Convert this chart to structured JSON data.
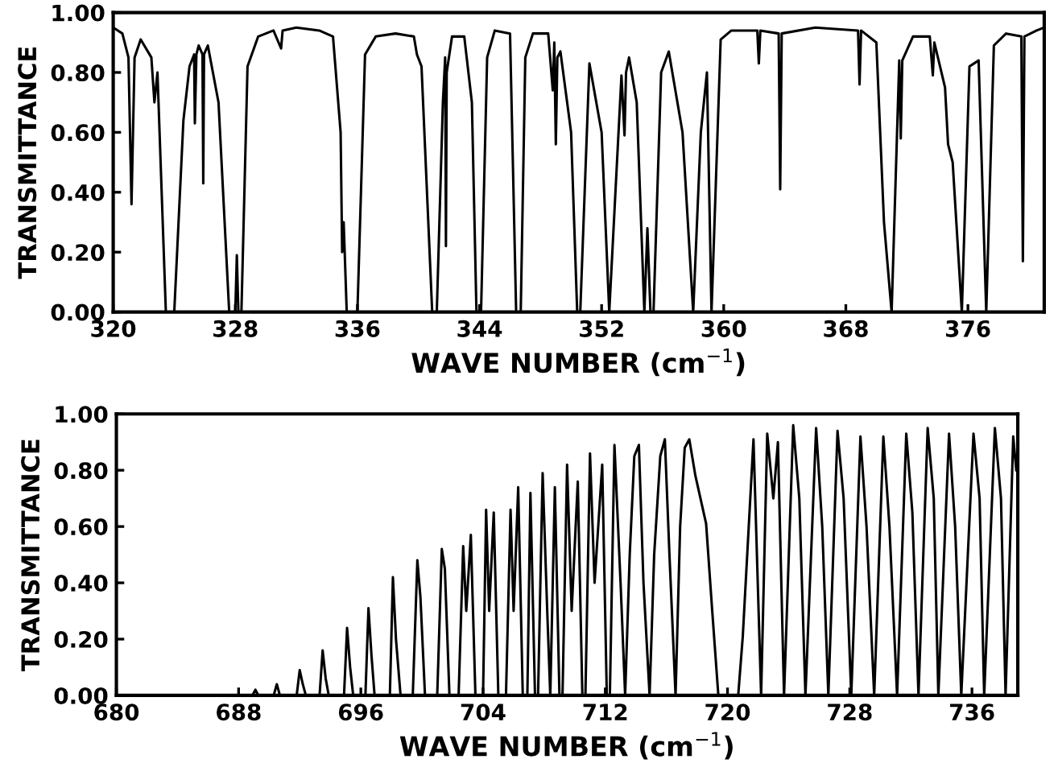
{
  "chart_data": [
    {
      "type": "line",
      "xlabel": "WAVE NUMBER (cm$^{−1}$)",
      "ylabel": "TRANSMITTANCE",
      "xlim": [
        320,
        381
      ],
      "ylim": [
        0,
        1
      ],
      "xticks": [
        320,
        328,
        336,
        344,
        352,
        360,
        368,
        376
      ],
      "yticks": [
        {
          "value": 0,
          "label": "0.00"
        },
        {
          "value": 0.2,
          "label": "0.20"
        },
        {
          "value": 0.4,
          "label": "0.40"
        },
        {
          "value": 0.6,
          "label": "0.60"
        },
        {
          "value": 0.8,
          "label": "0.80"
        },
        {
          "value": 1,
          "label": "1.00"
        }
      ],
      "grid": false,
      "series": [
        {
          "color": "#000000",
          "x": [
            320.0,
            320.6,
            321.0,
            321.2,
            321.4,
            321.8,
            322.5,
            322.7,
            322.9,
            323.45,
            324.0,
            324.6,
            325.0,
            325.3,
            325.35,
            325.45,
            325.6,
            325.85,
            325.9,
            325.95,
            326.2,
            326.9,
            327.6,
            328.0,
            328.1,
            328.2,
            328.4,
            328.8,
            329.5,
            330.5,
            331.0,
            331.1,
            332.0,
            333.5,
            334.4,
            334.9,
            335.0,
            335.1,
            335.3,
            336.0,
            336.5,
            337.2,
            338.5,
            339.7,
            339.9,
            340.2,
            340.9,
            341.2,
            341.6,
            341.75,
            341.8,
            341.85,
            342.2,
            343.0,
            343.5,
            343.8,
            344.1,
            344.5,
            345.0,
            346.0,
            346.4,
            346.7,
            347.0,
            347.5,
            348.5,
            348.8,
            348.9,
            349.0,
            349.1,
            349.3,
            350.0,
            350.4,
            350.6,
            351.2,
            352.0,
            352.5,
            353.3,
            353.5,
            353.6,
            353.8,
            354.3,
            354.8,
            355.0,
            355.2,
            355.4,
            355.9,
            356.4,
            357.3,
            358.0,
            358.5,
            358.9,
            359.2,
            359.8,
            360.5,
            362.2,
            362.3,
            362.4,
            363.6,
            363.7,
            363.8,
            366.0,
            368.8,
            368.9,
            369.0,
            370.0,
            370.5,
            371.0,
            371.5,
            371.6,
            371.7,
            372.4,
            373.5,
            373.7,
            373.8,
            374.5,
            374.7,
            375.0,
            375.6,
            376.1,
            376.7,
            377.2,
            377.7,
            378.5,
            379.5,
            379.6,
            379.7,
            380.5,
            381.0
          ],
          "values": [
            0.95,
            0.93,
            0.85,
            0.36,
            0.85,
            0.91,
            0.85,
            0.7,
            0.8,
            0,
            0,
            0.64,
            0.82,
            0.86,
            0.63,
            0.86,
            0.89,
            0.86,
            0.43,
            0.86,
            0.89,
            0.7,
            0,
            0,
            0.19,
            0,
            0,
            0.82,
            0.92,
            0.94,
            0.88,
            0.94,
            0.95,
            0.94,
            0.92,
            0.6,
            0.2,
            0.3,
            0,
            0,
            0.86,
            0.92,
            0.93,
            0.92,
            0.86,
            0.82,
            0,
            0,
            0.7,
            0.85,
            0.22,
            0.8,
            0.92,
            0.92,
            0.7,
            0,
            0,
            0.85,
            0.94,
            0.93,
            0,
            0,
            0.85,
            0.93,
            0.93,
            0.74,
            0.9,
            0.56,
            0.85,
            0.87,
            0.6,
            0,
            0,
            0.83,
            0.6,
            0,
            0.79,
            0.59,
            0.8,
            0.85,
            0.7,
            0,
            0.28,
            0,
            0,
            0.8,
            0.87,
            0.6,
            0,
            0.6,
            0.8,
            0,
            0.91,
            0.94,
            0.94,
            0.83,
            0.94,
            0.93,
            0.41,
            0.93,
            0.95,
            0.94,
            0.76,
            0.94,
            0.9,
            0.3,
            0,
            0.84,
            0.58,
            0.84,
            0.92,
            0.92,
            0.79,
            0.9,
            0.75,
            0.56,
            0.5,
            0,
            0.82,
            0.84,
            0,
            0.89,
            0.93,
            0.92,
            0.17,
            0.92,
            0.94,
            0.95
          ]
        }
      ]
    },
    {
      "type": "line",
      "xlabel": "WAVE NUMBER (cm$^{−1}$)",
      "ylabel": "TRANSMITTANCE",
      "xlim": [
        680,
        739
      ],
      "ylim": [
        0,
        1
      ],
      "xticks": [
        680,
        688,
        696,
        704,
        712,
        720,
        728,
        736
      ],
      "yticks": [
        {
          "value": 0,
          "label": "0.00"
        },
        {
          "value": 0.2,
          "label": "0.20"
        },
        {
          "value": 0.4,
          "label": "0.40"
        },
        {
          "value": 0.6,
          "label": "0.60"
        },
        {
          "value": 0.8,
          "label": "0.80"
        },
        {
          "value": 1,
          "label": "1.00"
        }
      ],
      "grid": false,
      "series": [
        {
          "color": "#000000",
          "x": [
            680,
            688.9,
            689.1,
            689.3,
            690.3,
            690.5,
            690.7,
            691.8,
            692.0,
            692.2,
            692.4,
            693.3,
            693.5,
            693.7,
            693.9,
            694.9,
            695.1,
            695.3,
            695.5,
            696.3,
            696.5,
            696.7,
            696.9,
            697.9,
            698.1,
            698.3,
            698.6,
            699.4,
            699.7,
            699.9,
            700.2,
            701.0,
            701.3,
            701.5,
            701.8,
            702.4,
            702.7,
            702.9,
            703.2,
            703.5,
            704.0,
            704.2,
            704.4,
            704.7,
            705.0,
            705.5,
            705.8,
            706.0,
            706.3,
            706.6,
            706.9,
            707.1,
            707.4,
            707.6,
            707.9,
            708.2,
            708.4,
            708.7,
            709.0,
            709.2,
            709.5,
            709.8,
            710.2,
            710.5,
            710.7,
            711.0,
            711.3,
            711.8,
            712.1,
            712.3,
            712.6,
            713.0,
            713.3,
            713.6,
            713.9,
            714.2,
            714.5,
            714.9,
            715.2,
            715.6,
            715.9,
            716.2,
            716.6,
            716.9,
            717.2,
            717.5,
            717.9,
            718.6,
            719.0,
            719.4,
            720.7,
            721.0,
            721.7,
            722.2,
            722.6,
            723.0,
            723.3,
            723.7,
            724.3,
            724.7,
            725.1,
            725.8,
            726.2,
            726.6,
            727.2,
            727.6,
            728.1,
            728.7,
            729.1,
            729.6,
            730.2,
            730.6,
            731.1,
            731.7,
            732.1,
            732.5,
            733.1,
            733.5,
            733.8,
            734.5,
            734.9,
            735.3,
            736.1,
            736.5,
            736.8,
            737.5,
            737.9,
            738.2,
            738.7,
            738.9
          ],
          "values": [
            0,
            0,
            0.02,
            0,
            0,
            0.04,
            0,
            0,
            0.09,
            0.04,
            0,
            0,
            0.16,
            0.06,
            0,
            0,
            0.24,
            0.1,
            0,
            0,
            0.31,
            0.14,
            0,
            0,
            0.42,
            0.2,
            0,
            0,
            0.48,
            0.35,
            0,
            0,
            0.52,
            0.45,
            0,
            0,
            0.53,
            0.3,
            0.57,
            0,
            0,
            0.66,
            0.3,
            0.65,
            0,
            0,
            0.66,
            0.3,
            0.74,
            0,
            0,
            0.72,
            0,
            0,
            0.79,
            0.3,
            0,
            0.74,
            0,
            0,
            0.82,
            0.3,
            0.76,
            0,
            0,
            0.86,
            0.4,
            0.82,
            0,
            0,
            0.89,
            0.4,
            0,
            0.5,
            0.85,
            0.89,
            0.4,
            0,
            0.5,
            0.85,
            0.91,
            0.5,
            0,
            0.6,
            0.88,
            0.91,
            0.78,
            0.61,
            0.3,
            0,
            0,
            0.21,
            0.91,
            0,
            0.93,
            0.7,
            0.9,
            0,
            0.96,
            0.7,
            0,
            0.95,
            0.6,
            0,
            0.94,
            0.7,
            0,
            0.92,
            0.6,
            0,
            0.92,
            0.6,
            0,
            0.93,
            0.65,
            0,
            0.95,
            0.7,
            0,
            0.93,
            0.6,
            0,
            0.93,
            0.7,
            0,
            0.95,
            0.7,
            0,
            0.92,
            0.8
          ]
        }
      ]
    }
  ]
}
